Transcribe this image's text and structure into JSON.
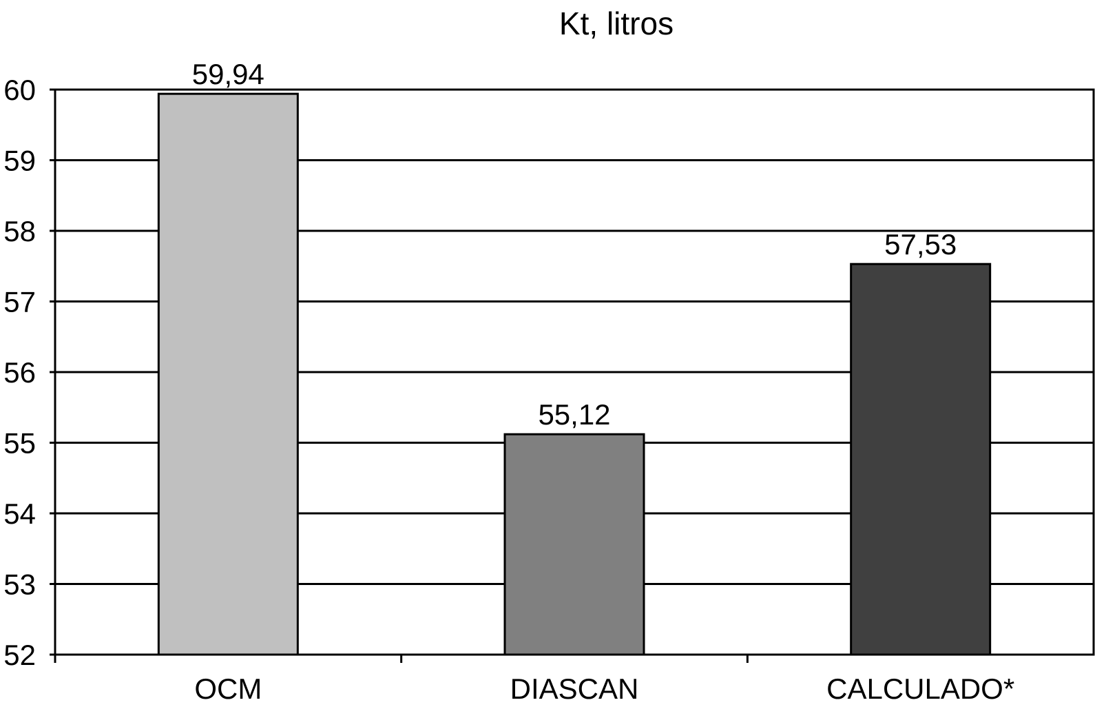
{
  "chart_data": {
    "type": "bar",
    "title": "Kt, litros",
    "xlabel": "",
    "ylabel": "",
    "categories": [
      "OCM",
      "DIASCAN",
      "CALCULADO*"
    ],
    "values": [
      59.94,
      55.12,
      57.53
    ],
    "data_labels": [
      "59,94",
      "55,12",
      "57,53"
    ],
    "ylim": [
      52,
      60
    ],
    "yticks": [
      52,
      53,
      54,
      55,
      56,
      57,
      58,
      59,
      60
    ],
    "grid": true,
    "legend": "none",
    "bar_colors": [
      "#c0c0c0",
      "#808080",
      "#404040"
    ],
    "outline_color": "#000000"
  }
}
